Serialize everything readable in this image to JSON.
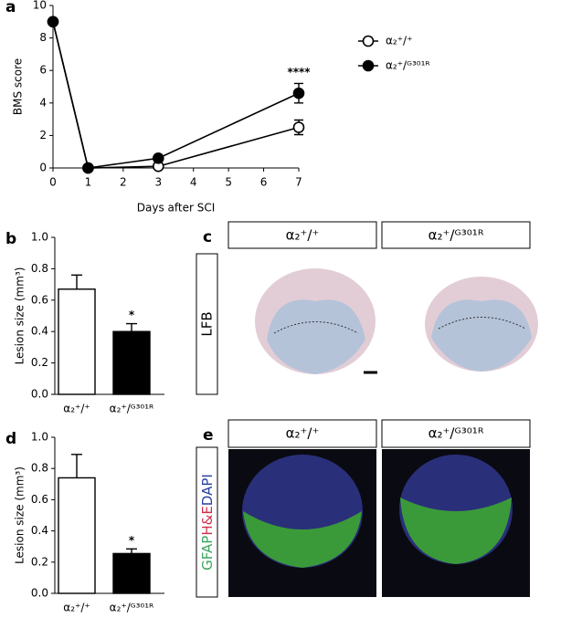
{
  "chart_data": [
    {
      "type": "line",
      "panel_label": "a",
      "y_label": "BMS score",
      "x_label": "Days after SCI",
      "x": [
        0,
        1,
        3,
        7
      ],
      "xlim": [
        0,
        7
      ],
      "xticks": [
        0,
        1,
        2,
        3,
        4,
        5,
        6,
        7
      ],
      "ylim": [
        0,
        10
      ],
      "yticks": [
        0,
        2,
        4,
        6,
        8,
        10
      ],
      "series": [
        {
          "name": "α₂⁺/⁺",
          "color": "#000000",
          "marker_fill": "#ffffff",
          "values": [
            9,
            0,
            0.1,
            2.5
          ],
          "errors": [
            0.1,
            0.05,
            0.1,
            0.45
          ]
        },
        {
          "name": "α₂⁺/ᴳ³⁰¹ᴿ",
          "color": "#000000",
          "marker_fill": "#000000",
          "values": [
            9,
            0,
            0.6,
            4.6
          ],
          "errors": [
            0.1,
            0.05,
            0.1,
            0.6
          ]
        }
      ],
      "annotation": "****",
      "legend": "right"
    },
    {
      "type": "bar",
      "panel_label": "b",
      "y_label": "Lesion size (mm³)",
      "categories": [
        "α₂⁺/⁺",
        "α₂⁺/ᴳ³⁰¹ᴿ"
      ],
      "values": [
        0.67,
        0.4
      ],
      "errors": [
        0.09,
        0.05
      ],
      "colors": [
        "#ffffff",
        "#000000"
      ],
      "ylim": [
        0,
        1
      ],
      "yticks": [
        {
          "value": 0,
          "label": "0.0"
        },
        {
          "value": 0.2,
          "label": "0.2"
        },
        {
          "value": 0.4,
          "label": "0.4"
        },
        {
          "value": 0.6,
          "label": "0.6"
        },
        {
          "value": 0.8,
          "label": "0.8"
        },
        {
          "value": 1,
          "label": "1.0"
        }
      ],
      "annotation": "*"
    },
    {
      "type": "bar",
      "panel_label": "d",
      "y_label": "Lesion size (mm³)",
      "categories": [
        "α₂⁺/⁺",
        "α₂⁺/ᴳ³⁰¹ᴿ"
      ],
      "values": [
        0.74,
        0.255
      ],
      "errors": [
        0.15,
        0.03
      ],
      "colors": [
        "#ffffff",
        "#000000"
      ],
      "ylim": [
        0,
        1
      ],
      "yticks": [
        {
          "value": 0,
          "label": "0.0"
        },
        {
          "value": 0.2,
          "label": "0.2"
        },
        {
          "value": 0.4,
          "label": "0.4"
        },
        {
          "value": 0.6,
          "label": "0.6"
        },
        {
          "value": 0.8,
          "label": "0.8"
        },
        {
          "value": 1,
          "label": "1.0"
        }
      ],
      "annotation": "*"
    }
  ],
  "image_panels": {
    "c": {
      "letter": "c",
      "stain": "LFB",
      "headers": [
        "α₂⁺/⁺",
        "α₂⁺/ᴳ³⁰¹ᴿ"
      ]
    },
    "e": {
      "letter": "e",
      "stain_parts": [
        "GFAP",
        "H&E",
        "DAPI"
      ],
      "headers": [
        "α₂⁺/⁺",
        "α₂⁺/ᴳ³⁰¹ᴿ"
      ]
    }
  }
}
